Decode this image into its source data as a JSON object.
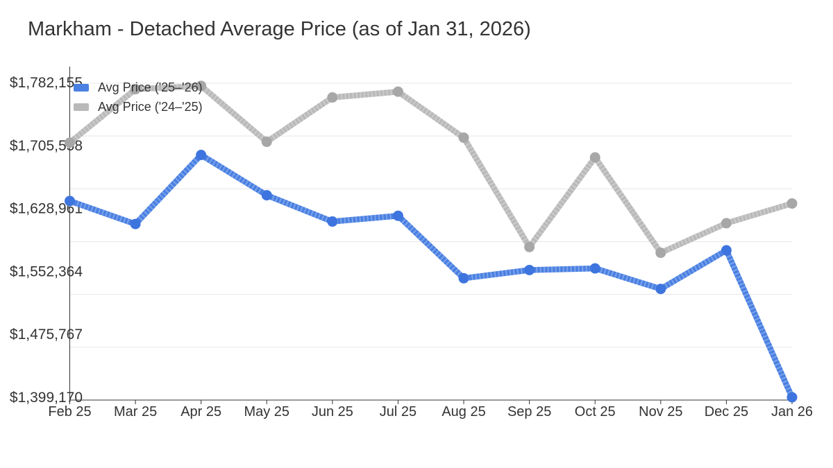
{
  "title": {
    "text": "Markham - Detached Average Price (as of Jan 31, 2026)"
  },
  "style": {
    "background": "#ffffff",
    "text_color": "#333333",
    "axis_color": "#333333",
    "grid_color": "#e7e7e7",
    "blue": "#4a80e2",
    "gray": "#b9b9b9"
  },
  "chart_data": {
    "type": "line",
    "title": "Markham - Detached Average Price (as of Jan 31, 2026)",
    "x": [
      "Feb 25",
      "Mar 25",
      "Apr 25",
      "May 25",
      "Jun 25",
      "Jul 25",
      "Aug 25",
      "Sep 25",
      "Oct 25",
      "Nov 25",
      "Dec 25",
      "Jan 26"
    ],
    "series": [
      {
        "name": "Avg Price ('25–'26)",
        "color": "#4a80e2",
        "marker_color": "#3e74de",
        "values": [
          1638000,
          1610000,
          1694000,
          1645000,
          1613000,
          1620000,
          1544000,
          1554000,
          1556000,
          1531000,
          1578000,
          1399170
        ]
      },
      {
        "name": "Avg Price ('24–'25)",
        "color": "#b9b9b9",
        "marker_color": "#a7a7a7",
        "values": [
          1709000,
          1774000,
          1778000,
          1710000,
          1764000,
          1771000,
          1715000,
          1582000,
          1691000,
          1575000,
          1611000,
          1635000
        ]
      }
    ],
    "ylim": [
      1399170,
      1782155
    ],
    "yticks": [
      {
        "label": "$1,782,155",
        "value": 1782155
      },
      {
        "label": "$1,705,558",
        "value": 1705558
      },
      {
        "label": "$1,628,961",
        "value": 1628961
      },
      {
        "label": "$1,552,364",
        "value": 1552364
      },
      {
        "label": "$1,475,767",
        "value": 1475767
      },
      {
        "label": "$1,399,170",
        "value": 1399170
      }
    ],
    "grid": "horizontal",
    "legend_position": "inside-top-left"
  }
}
